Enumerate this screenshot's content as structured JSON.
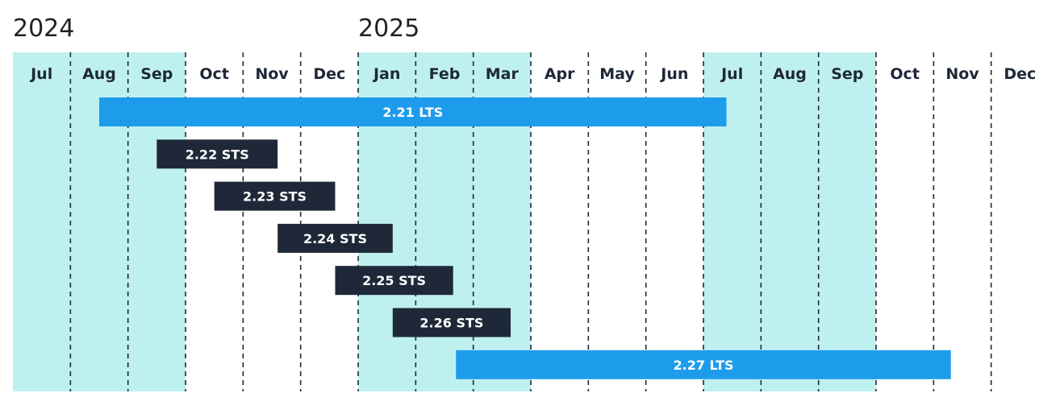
{
  "chart_data": {
    "type": "timeline",
    "years": [
      {
        "label": "2024",
        "start_index": 0
      },
      {
        "label": "2025",
        "start_index": 6
      }
    ],
    "months": [
      "Jul",
      "Aug",
      "Sep",
      "Oct",
      "Nov",
      "Dec",
      "Jan",
      "Feb",
      "Mar",
      "Apr",
      "May",
      "Jun",
      "Jul",
      "Aug",
      "Sep",
      "Oct",
      "Nov",
      "Dec"
    ],
    "highlight_bands": [
      {
        "from": 0,
        "to": 3
      },
      {
        "from": 6,
        "to": 9
      },
      {
        "from": 12,
        "to": 15
      }
    ],
    "bars": [
      {
        "label": "2.21 LTS",
        "kind": "LTS",
        "start": 1.5,
        "end": 12.4
      },
      {
        "label": "2.22 STS",
        "kind": "STS",
        "start": 2.5,
        "end": 4.6
      },
      {
        "label": "2.23 STS",
        "kind": "STS",
        "start": 3.5,
        "end": 5.6
      },
      {
        "label": "2.24 STS",
        "kind": "STS",
        "start": 4.6,
        "end": 6.6
      },
      {
        "label": "2.25 STS",
        "kind": "STS",
        "start": 5.6,
        "end": 7.65
      },
      {
        "label": "2.26 STS",
        "kind": "STS",
        "start": 6.6,
        "end": 8.65
      },
      {
        "label": "2.27 LTS",
        "kind": "LTS",
        "start": 7.7,
        "end": 16.3
      }
    ],
    "colors": {
      "band": "#bff0f0",
      "lts": "#1e9cec",
      "sts": "#1e2838",
      "gridline": "#1e2838",
      "month_text": "#1e2838",
      "year_text": "#222222"
    }
  }
}
